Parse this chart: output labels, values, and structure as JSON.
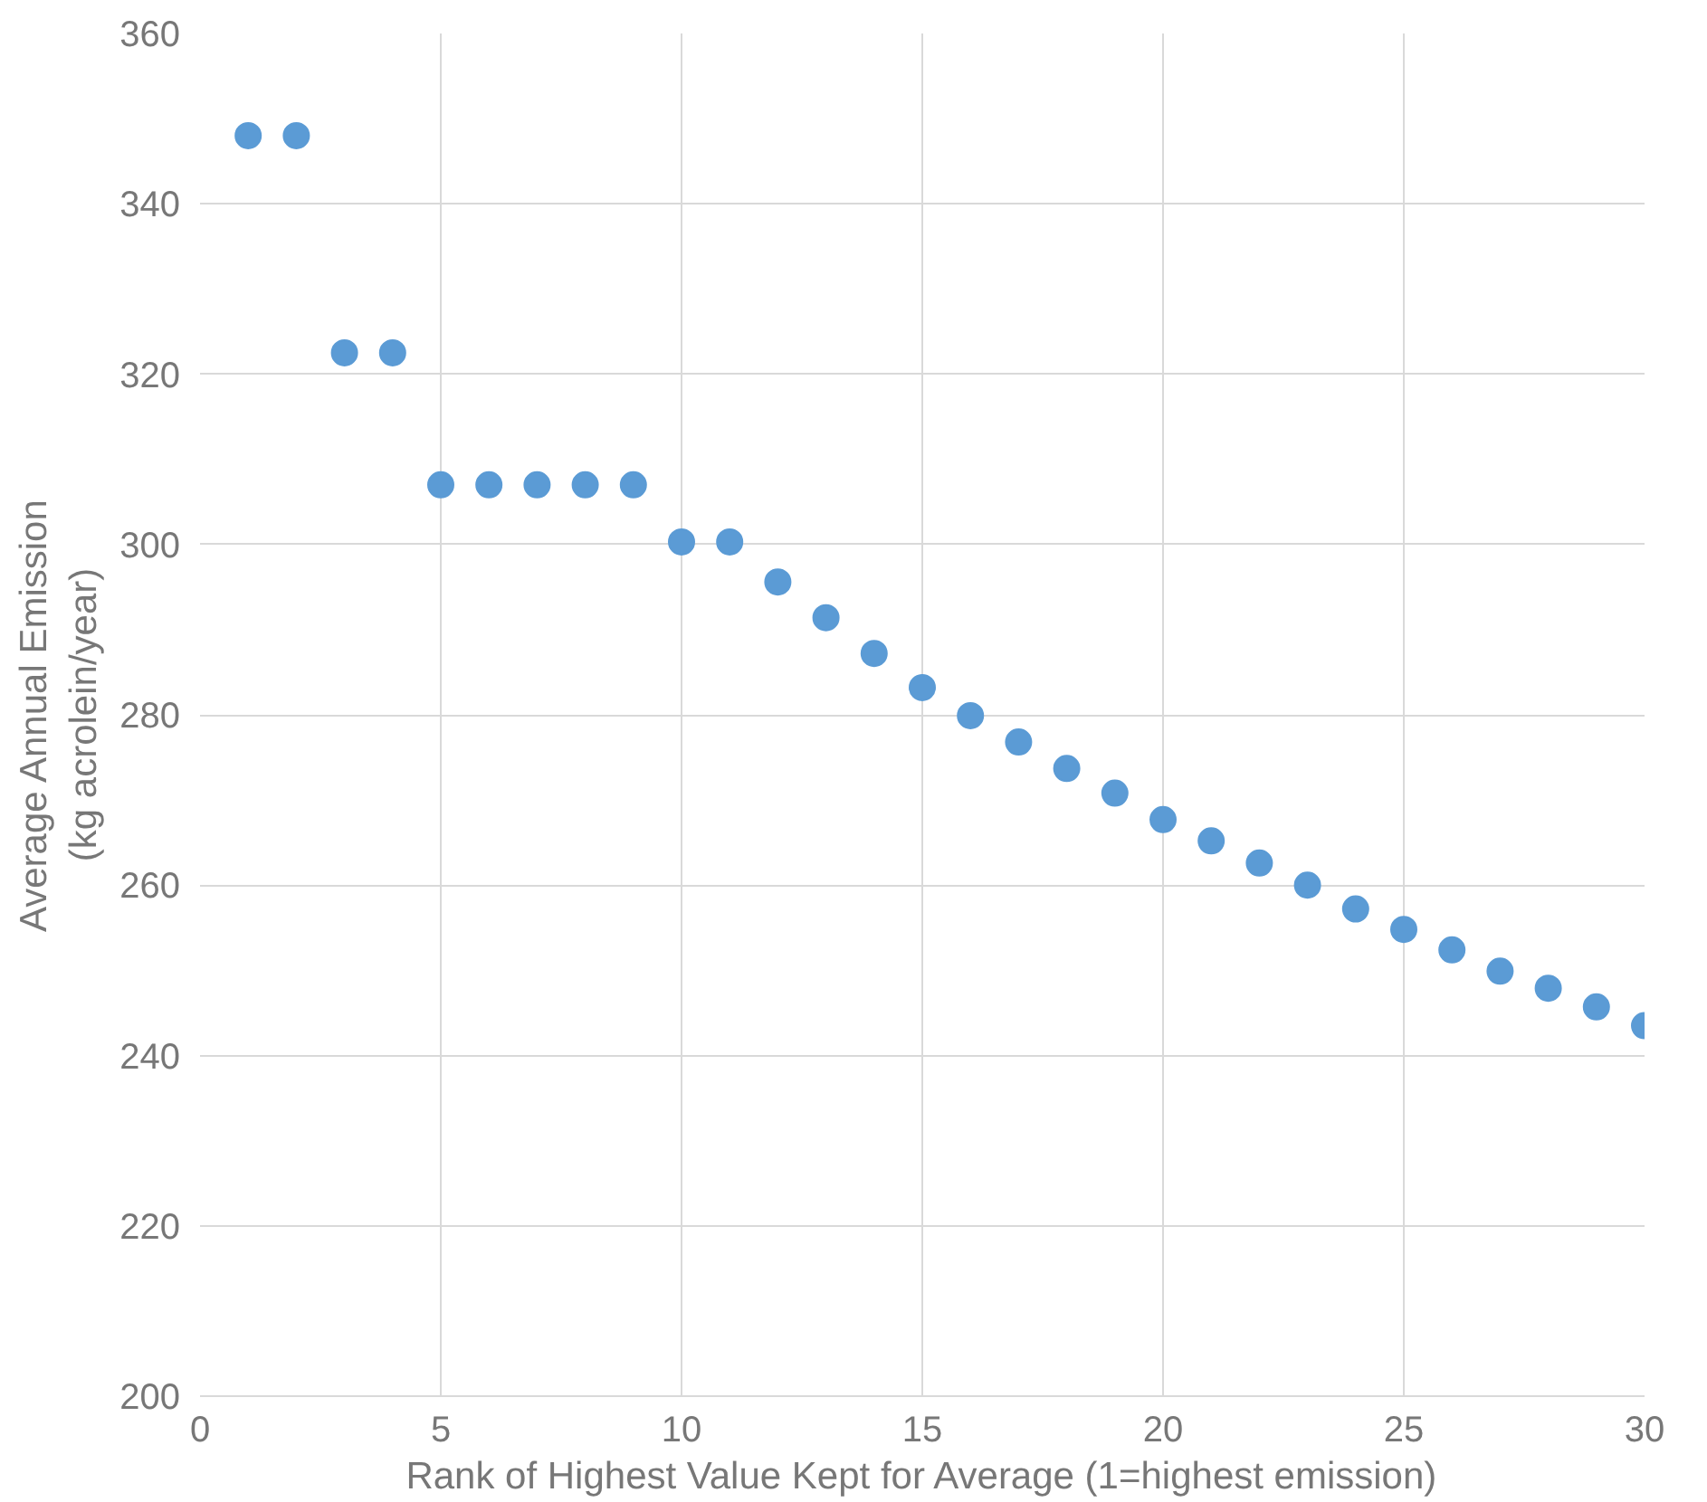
{
  "chart_data": {
    "type": "scatter",
    "xlabel": "Rank of Highest Value Kept for Average (1=highest emission)",
    "ylabel": "Average Annual Emission\n(kg acrolein/year)",
    "x": [
      1,
      2,
      3,
      4,
      5,
      6,
      7,
      8,
      9,
      10,
      11,
      12,
      13,
      14,
      15,
      16,
      17,
      18,
      19,
      20,
      21,
      22,
      23,
      24,
      25,
      26,
      27,
      28,
      29,
      30
    ],
    "series": [
      {
        "color": "#5b9bd5",
        "values": [
          348,
          348,
          322.5,
          322.5,
          307,
          307,
          307,
          307,
          307,
          300.3,
          300.3,
          295.6,
          291.4,
          287.2,
          283.2,
          279.9,
          276.8,
          273.7,
          270.8,
          267.7,
          265.2,
          262.6,
          260,
          257.2,
          254.8,
          252.4,
          249.9,
          247.9,
          245.7,
          243.5
        ]
      }
    ],
    "xlim": [
      0,
      30
    ],
    "xticks": [
      0,
      5,
      10,
      15,
      20,
      25,
      30
    ],
    "ylim": [
      200,
      360
    ],
    "yticks": [
      200,
      220,
      240,
      260,
      280,
      300,
      320,
      340,
      360
    ],
    "grid": true,
    "marker": "circle"
  }
}
